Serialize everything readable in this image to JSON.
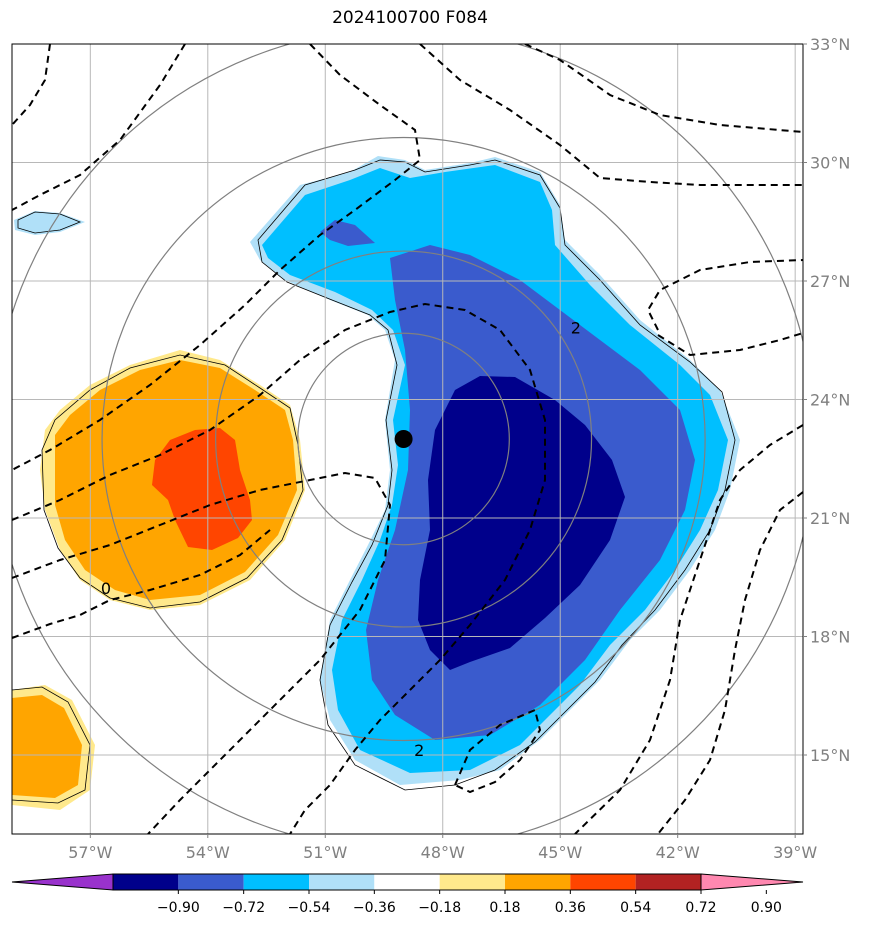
{
  "title": "2024100700 F084",
  "map": {
    "lon_range": [
      -59,
      -38.8
    ],
    "lat_range": [
      13,
      33
    ],
    "lon_ticks": [
      {
        "value": -57,
        "label": "57°W"
      },
      {
        "value": -54,
        "label": "54°W"
      },
      {
        "value": -51,
        "label": "51°W"
      },
      {
        "value": -48,
        "label": "48°W"
      },
      {
        "value": -45,
        "label": "45°W"
      },
      {
        "value": -42,
        "label": "42°W"
      },
      {
        "value": -39,
        "label": "39°W"
      }
    ],
    "lat_ticks": [
      {
        "value": 33,
        "label": "33°N"
      },
      {
        "value": 30,
        "label": "30°N"
      },
      {
        "value": 27,
        "label": "27°N"
      },
      {
        "value": 24,
        "label": "24°N"
      },
      {
        "value": 21,
        "label": "21°N"
      },
      {
        "value": 18,
        "label": "18°N"
      },
      {
        "value": 15,
        "label": "15°N"
      }
    ],
    "grid": true,
    "storm_center": {
      "lon": -49,
      "lat": 23
    },
    "range_rings_deg": [
      2.7,
      4.8,
      7.7,
      10.5
    ],
    "contour_labels": [
      {
        "text": "0",
        "lon": -56.6,
        "lat": 19.2
      },
      {
        "text": "2",
        "lon": -48.6,
        "lat": 15.1
      },
      {
        "text": "2",
        "lon": -44.6,
        "lat": 25.8
      }
    ]
  },
  "colorbar": {
    "colors": [
      "#9932cc",
      "#00008b",
      "#3a5bcd",
      "#00bfff",
      "#b0e0f8",
      "#ffffff",
      "#ffe98c",
      "#ffa500",
      "#ff4500",
      "#b22222",
      "#ff88b0"
    ],
    "tick_labels": [
      "−0.90",
      "−0.72",
      "−0.54",
      "−0.36",
      "−0.18",
      "0.18",
      "0.36",
      "0.54",
      "0.72",
      "0.90"
    ]
  }
}
